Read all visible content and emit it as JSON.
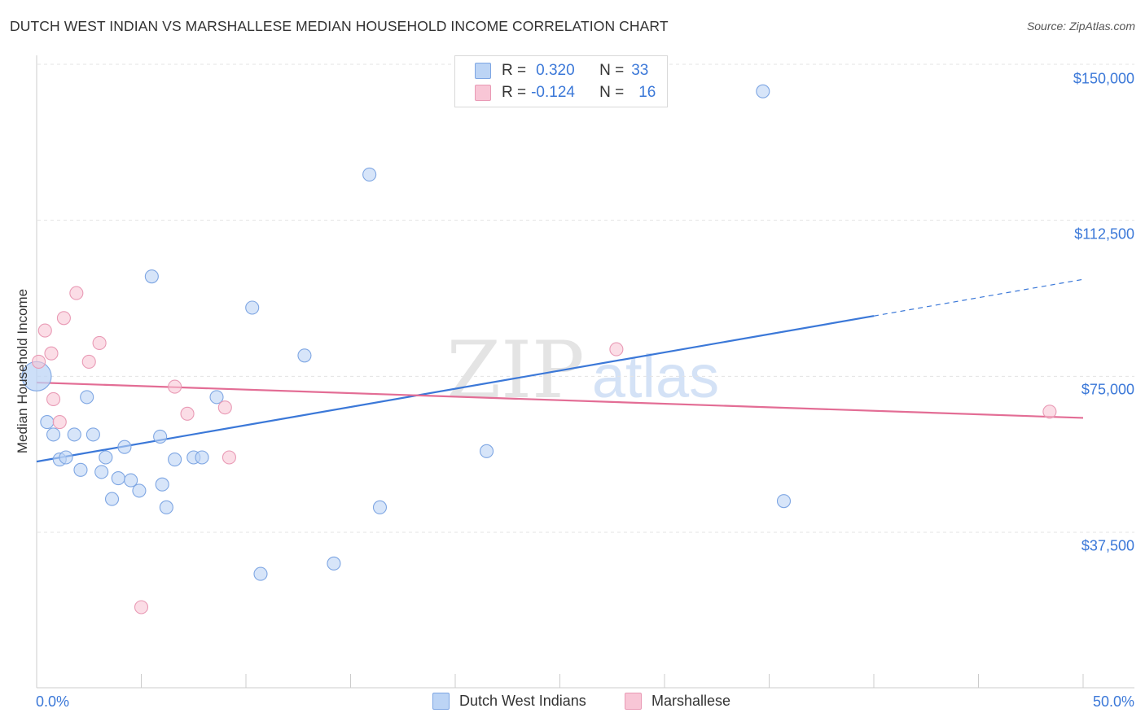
{
  "title": "DUTCH WEST INDIAN VS MARSHALLESE MEDIAN HOUSEHOLD INCOME CORRELATION CHART",
  "source": "Source: ZipAtlas.com",
  "watermark": {
    "zip": "ZIP",
    "atlas": "atlas"
  },
  "colors": {
    "blue": "#3b78d8",
    "blue_fill": "#bcd4f5",
    "pink": "#e36d95",
    "pink_fill": "#f8c6d6",
    "grid": "#e3e3e3"
  },
  "legend": {
    "rows": [
      {
        "r_label": "R =",
        "r_value": "0.320",
        "n_label": "N =",
        "n_value": "33"
      },
      {
        "r_label": "R =",
        "r_value": "-0.124",
        "n_label": "N =",
        "n_value": "16"
      }
    ]
  },
  "chart_data": {
    "type": "scatter",
    "title": "DUTCH WEST INDIAN VS MARSHALLESE MEDIAN HOUSEHOLD INCOME CORRELATION CHART",
    "xlabel": "",
    "ylabel": "Median Household Income",
    "xlim": [
      0,
      50
    ],
    "ylim": [
      0,
      155000
    ],
    "x_tick_labels": [
      "0.0%",
      "50.0%"
    ],
    "y_ticks": [
      {
        "value": 37500,
        "label": "$37,500"
      },
      {
        "value": 75000,
        "label": "$75,000"
      },
      {
        "value": 112500,
        "label": "$112,500"
      },
      {
        "value": 150000,
        "label": "$150,000"
      }
    ],
    "series": [
      {
        "name": "Dutch West Indians",
        "color": "#3b78d8",
        "points": [
          {
            "x": 0.0,
            "y": 75000,
            "big": true
          },
          {
            "x": 0.5,
            "y": 64000
          },
          {
            "x": 0.8,
            "y": 61000
          },
          {
            "x": 1.1,
            "y": 55000
          },
          {
            "x": 1.4,
            "y": 55500
          },
          {
            "x": 1.8,
            "y": 61000
          },
          {
            "x": 2.1,
            "y": 52500
          },
          {
            "x": 2.4,
            "y": 70000
          },
          {
            "x": 2.7,
            "y": 61000
          },
          {
            "x": 3.1,
            "y": 52000
          },
          {
            "x": 3.3,
            "y": 55500
          },
          {
            "x": 3.6,
            "y": 45500
          },
          {
            "x": 3.9,
            "y": 50500
          },
          {
            "x": 4.2,
            "y": 58000
          },
          {
            "x": 4.5,
            "y": 50000
          },
          {
            "x": 4.9,
            "y": 47500
          },
          {
            "x": 5.5,
            "y": 99000
          },
          {
            "x": 5.9,
            "y": 60500
          },
          {
            "x": 6.0,
            "y": 49000
          },
          {
            "x": 6.2,
            "y": 43500
          },
          {
            "x": 6.6,
            "y": 55000
          },
          {
            "x": 7.5,
            "y": 55500
          },
          {
            "x": 7.9,
            "y": 55500
          },
          {
            "x": 8.6,
            "y": 70000
          },
          {
            "x": 10.3,
            "y": 91500
          },
          {
            "x": 10.7,
            "y": 27500
          },
          {
            "x": 12.8,
            "y": 80000
          },
          {
            "x": 14.2,
            "y": 30000
          },
          {
            "x": 15.9,
            "y": 123500
          },
          {
            "x": 16.4,
            "y": 43500
          },
          {
            "x": 21.5,
            "y": 57000
          },
          {
            "x": 34.7,
            "y": 143500
          },
          {
            "x": 35.7,
            "y": 45000
          }
        ],
        "trend": {
          "x0": 0.0,
          "y0": 54500,
          "x1": 40.0,
          "y1": 89500,
          "x_dash_end": 50.0,
          "y_dash_end": 98300
        }
      },
      {
        "name": "Marshallese",
        "color": "#e36d95",
        "points": [
          {
            "x": 0.1,
            "y": 78500
          },
          {
            "x": 0.4,
            "y": 86000
          },
          {
            "x": 0.7,
            "y": 80500
          },
          {
            "x": 0.8,
            "y": 69500
          },
          {
            "x": 1.1,
            "y": 64000
          },
          {
            "x": 1.3,
            "y": 89000
          },
          {
            "x": 1.9,
            "y": 95000
          },
          {
            "x": 2.5,
            "y": 78500
          },
          {
            "x": 3.0,
            "y": 83000
          },
          {
            "x": 5.0,
            "y": 19500
          },
          {
            "x": 6.6,
            "y": 72500
          },
          {
            "x": 7.2,
            "y": 66000
          },
          {
            "x": 9.0,
            "y": 67500
          },
          {
            "x": 9.2,
            "y": 55500
          },
          {
            "x": 27.7,
            "y": 81500
          },
          {
            "x": 48.4,
            "y": 66500
          }
        ],
        "trend": {
          "x0": 0.0,
          "y0": 73500,
          "x1": 50.0,
          "y1": 65000
        }
      }
    ]
  }
}
